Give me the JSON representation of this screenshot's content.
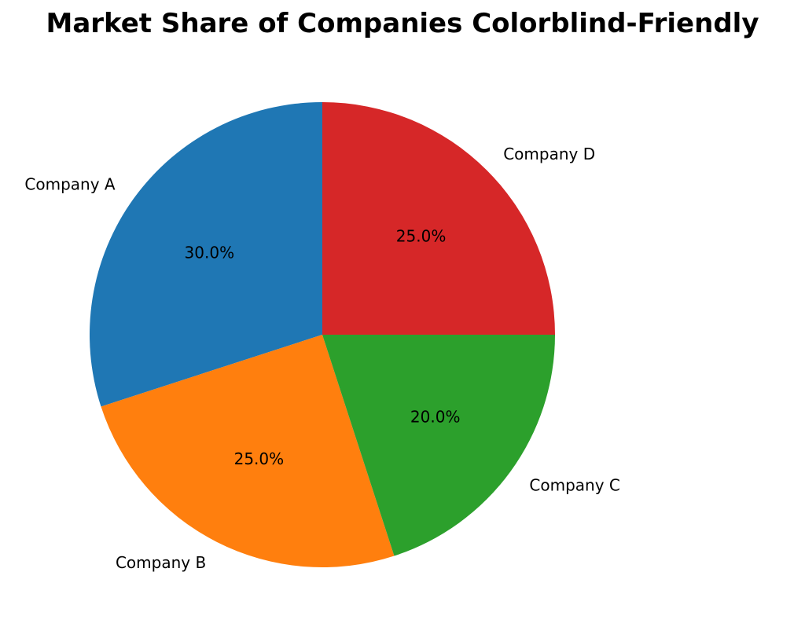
{
  "chart_data": {
    "type": "pie",
    "title": "Market Share of Companies Colorblind-Friendly",
    "start_angle_deg": 90,
    "direction": "counterclockwise",
    "slices": [
      {
        "label": "Company A",
        "value": 30.0,
        "pct_label": "30.0%",
        "color": "#1f77b4"
      },
      {
        "label": "Company B",
        "value": 25.0,
        "pct_label": "25.0%",
        "color": "#ff7f0e"
      },
      {
        "label": "Company C",
        "value": 20.0,
        "pct_label": "20.0%",
        "color": "#2ca02c"
      },
      {
        "label": "Company D",
        "value": 25.0,
        "pct_label": "25.0%",
        "color": "#d62728"
      }
    ]
  }
}
